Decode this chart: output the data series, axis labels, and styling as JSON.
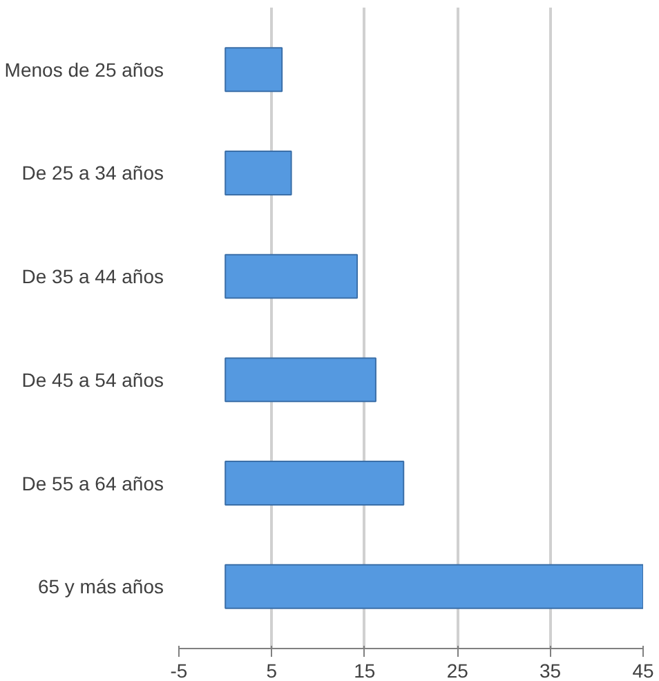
{
  "chart_data": {
    "type": "bar",
    "orientation": "horizontal",
    "categories": [
      "Menos de 25 años",
      "De 25 a 34 años",
      "De 35 a 44 años",
      "De 45 a 54 años",
      "De 55 a 64 años",
      "65 y más años"
    ],
    "values": [
      6.1,
      7.1,
      14.2,
      16.2,
      19.2,
      45
    ],
    "color": "#5599e0",
    "xlim": [
      -5,
      45
    ],
    "xticks": [
      -5,
      5,
      15,
      25,
      35,
      45
    ],
    "grid": "x"
  }
}
